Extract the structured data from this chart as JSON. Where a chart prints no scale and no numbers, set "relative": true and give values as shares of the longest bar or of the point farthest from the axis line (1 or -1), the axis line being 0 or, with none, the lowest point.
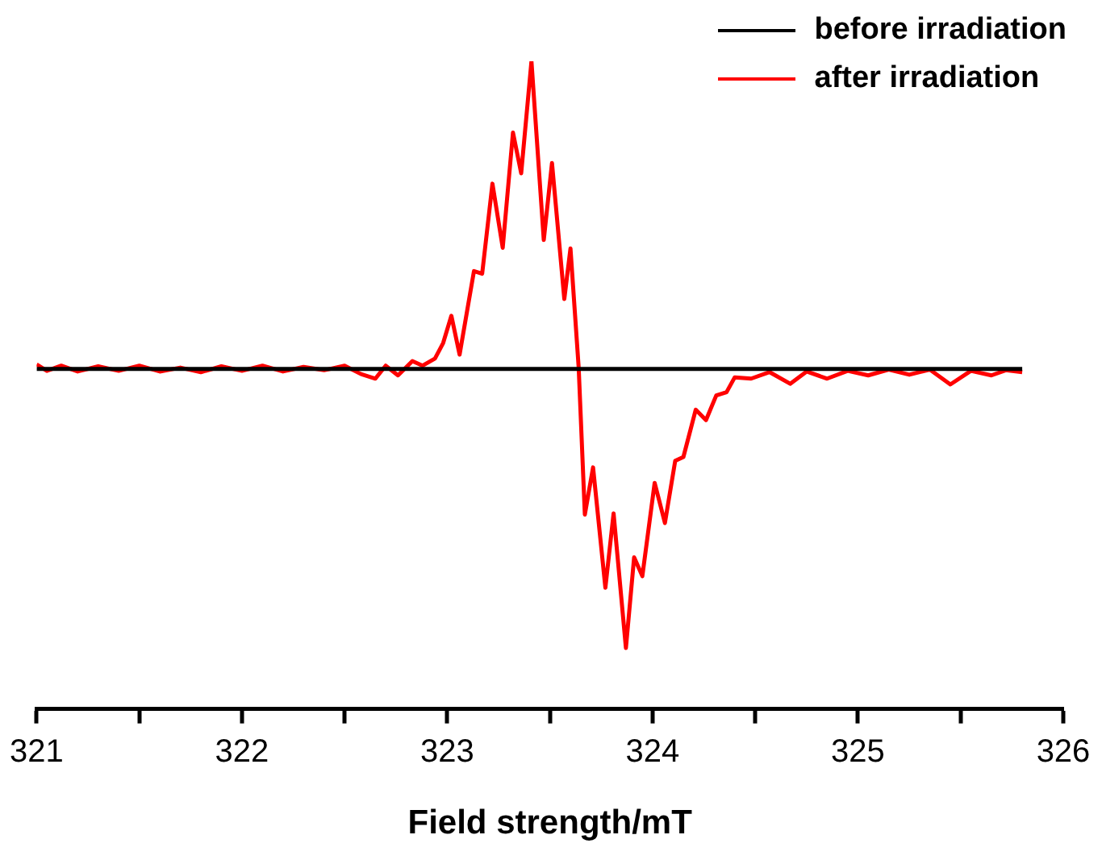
{
  "chart_data": {
    "type": "line",
    "relative": true,
    "xlabel": "Field strength/mT",
    "xlim": [
      321,
      326
    ],
    "xticks": [
      321,
      {
        "value": 321.5,
        "label": null
      },
      322,
      {
        "value": 322.5,
        "label": null
      },
      323,
      {
        "value": 323.5,
        "label": null
      },
      324,
      {
        "value": 324.5,
        "label": null
      },
      325,
      {
        "value": 325.5,
        "label": null
      },
      326
    ],
    "legend": "top right",
    "grid": false,
    "marker": "none",
    "line_style": "solid",
    "tick_labels": "x",
    "series": [
      {
        "name": "before irradiation",
        "color": "#000000",
        "x": [
          321,
          325.8
        ],
        "values": [
          0.525,
          0.525
        ]
      },
      {
        "name": "after irradiation",
        "color": "#ff0000",
        "x": [
          321.0,
          321.05,
          321.12,
          321.2,
          321.3,
          321.4,
          321.5,
          321.6,
          321.7,
          321.8,
          321.9,
          322.0,
          322.1,
          322.2,
          322.3,
          322.4,
          322.5,
          322.58,
          322.65,
          322.7,
          322.76,
          322.83,
          322.88,
          322.94,
          322.98,
          323.02,
          323.06,
          323.13,
          323.17,
          323.22,
          323.27,
          323.32,
          323.36,
          323.41,
          323.47,
          323.51,
          323.57,
          323.6,
          323.64,
          323.67,
          323.71,
          323.77,
          323.81,
          323.87,
          323.91,
          323.95,
          324.01,
          324.06,
          324.11,
          324.15,
          324.21,
          324.26,
          324.31,
          324.36,
          324.4,
          324.48,
          324.57,
          324.67,
          324.75,
          324.85,
          324.95,
          325.05,
          325.15,
          325.25,
          325.35,
          325.45,
          325.55,
          325.65,
          325.72,
          325.8
        ],
        "values": [
          0.532,
          0.522,
          0.53,
          0.521,
          0.529,
          0.522,
          0.53,
          0.521,
          0.527,
          0.52,
          0.529,
          0.522,
          0.53,
          0.521,
          0.528,
          0.523,
          0.53,
          0.517,
          0.51,
          0.53,
          0.515,
          0.537,
          0.53,
          0.541,
          0.565,
          0.607,
          0.547,
          0.676,
          0.672,
          0.811,
          0.712,
          0.89,
          0.827,
          1,
          0.724,
          0.843,
          0.633,
          0.711,
          0.527,
          0.3,
          0.373,
          0.187,
          0.302,
          0.094,
          0.234,
          0.205,
          0.349,
          0.287,
          0.383,
          0.389,
          0.462,
          0.446,
          0.484,
          0.489,
          0.512,
          0.51,
          0.52,
          0.502,
          0.521,
          0.51,
          0.522,
          0.515,
          0.524,
          0.516,
          0.524,
          0.501,
          0.522,
          0.515,
          0.523,
          0.52
        ]
      }
    ]
  }
}
